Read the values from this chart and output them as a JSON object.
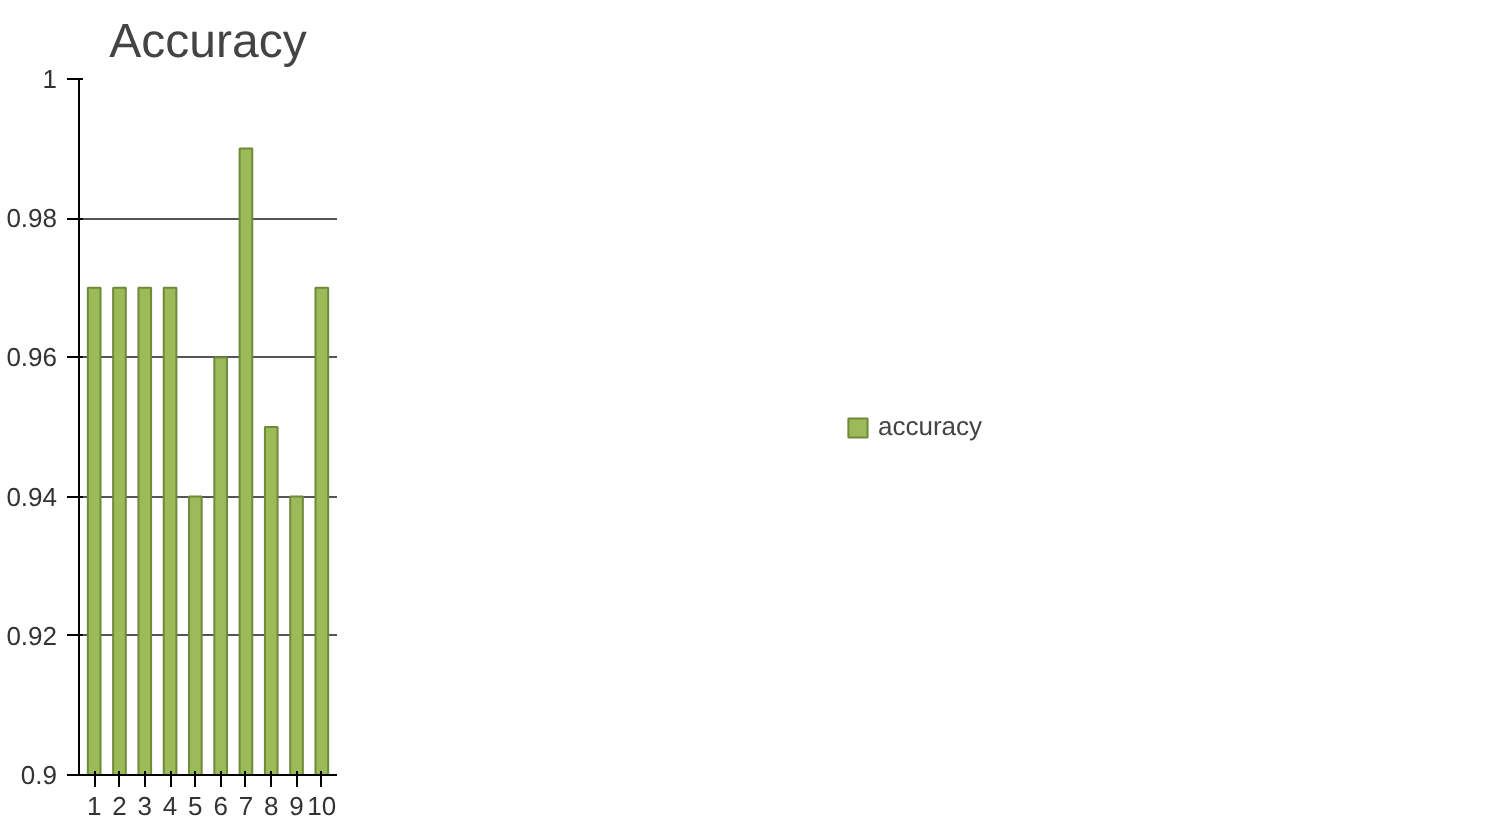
{
  "chart_data": {
    "type": "bar",
    "title": "Accuracy",
    "categories": [
      "1",
      "2",
      "3",
      "4",
      "5",
      "6",
      "7",
      "8",
      "9",
      "10"
    ],
    "series": [
      {
        "name": "accuracy",
        "color": "#9bbb59",
        "values": [
          0.97,
          0.97,
          0.97,
          0.97,
          0.94,
          0.96,
          0.99,
          0.95,
          0.94,
          0.97
        ]
      }
    ],
    "ylim": [
      0.9,
      1
    ],
    "yticks": [
      0.9,
      0.92,
      0.94,
      0.96,
      0.98,
      1
    ],
    "grid": "y",
    "legend": "right"
  }
}
